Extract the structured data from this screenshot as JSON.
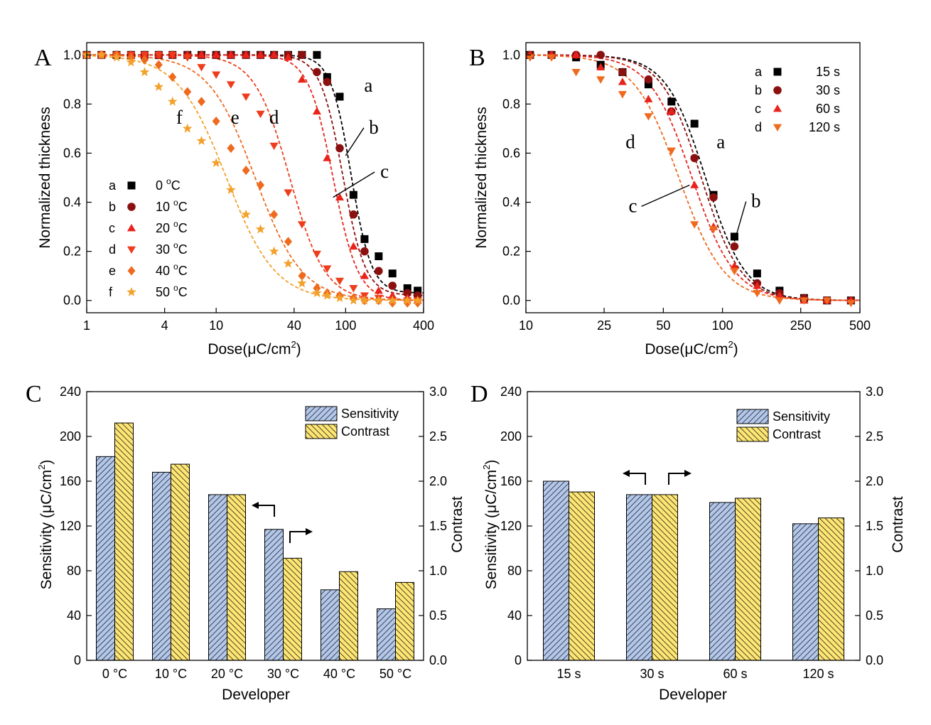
{
  "colors": {
    "a": "#000000",
    "b": "#8b1010",
    "c": "#e8231b",
    "d": "#ee3c1c",
    "e": "#ee6a1e",
    "f": "#f2a12a",
    "sensitivity_fill": "#b4c7e7",
    "contrast_fill": "#fde673"
  },
  "chart_data": [
    {
      "panel": "A",
      "type": "scatter",
      "xlabel_prefix": "Dose(",
      "xlabel_unit": "μC/cm",
      "xlabel_sup": "2",
      "xlabel_suffix": ")",
      "ylabel": "Normalized thickness",
      "x_scale": "log",
      "xlim": [
        1,
        400
      ],
      "ylim": [
        -0.05,
        1.05
      ],
      "x_ticks": [
        1,
        4,
        10,
        40,
        100,
        400
      ],
      "x_tick_labels": [
        "1",
        "4",
        "10",
        "40",
        "100",
        "400"
      ],
      "y_ticks": [
        0.0,
        0.2,
        0.4,
        0.6,
        0.8,
        1.0
      ],
      "y_tick_labels": [
        "0.0",
        "0.2",
        "0.4",
        "0.6",
        "0.8",
        "1.0"
      ],
      "fit_lines": "dashed",
      "legend_position": "lower-left",
      "series": [
        {
          "key": "a",
          "label": "a",
          "name": "0 ",
          "unit_sup": "o",
          "unit": "C",
          "marker": "square",
          "color_key": "a",
          "x": [
            1,
            1.3,
            1.7,
            2.2,
            2.8,
            3.6,
            4.6,
            6,
            7.7,
            10,
            13,
            17,
            22,
            28,
            36,
            46,
            60,
            72,
            90,
            115,
            140,
            180,
            230,
            300,
            360
          ],
          "y": [
            1.0,
            1.0,
            1.0,
            1.0,
            1.0,
            1.0,
            1.0,
            1.0,
            1.0,
            1.0,
            1.0,
            1.0,
            1.0,
            1.0,
            1.0,
            1.0,
            1.0,
            0.91,
            0.83,
            0.43,
            0.25,
            0.18,
            0.11,
            0.05,
            0.04
          ],
          "fit": {
            "x0": 110,
            "n": 5.5,
            "bottom": 0.03
          }
        },
        {
          "key": "b",
          "label": "b",
          "name": "10 ",
          "unit_sup": "o",
          "unit": "C",
          "marker": "circle",
          "color_key": "b",
          "x": [
            1,
            1.3,
            1.7,
            2.2,
            2.8,
            3.6,
            4.6,
            6,
            7.7,
            10,
            13,
            17,
            22,
            28,
            36,
            46,
            60,
            72,
            90,
            115,
            140,
            180,
            230,
            300,
            360
          ],
          "y": [
            1.0,
            1.0,
            1.0,
            1.0,
            1.0,
            1.0,
            1.0,
            1.0,
            1.0,
            1.0,
            1.0,
            1.0,
            1.0,
            1.0,
            1.0,
            1.0,
            0.93,
            0.89,
            0.62,
            0.35,
            0.2,
            0.12,
            0.06,
            0.03,
            0.02
          ],
          "fit": {
            "x0": 95,
            "n": 5.0,
            "bottom": 0.02
          }
        },
        {
          "key": "c",
          "label": "c",
          "name": "20 ",
          "unit_sup": "o",
          "unit": "C",
          "marker": "triangle-up",
          "color_key": "c",
          "x": [
            1,
            1.3,
            1.7,
            2.2,
            2.8,
            3.6,
            4.6,
            6,
            7.7,
            10,
            13,
            17,
            22,
            28,
            36,
            46,
            60,
            72,
            90,
            115,
            140,
            180,
            230,
            300,
            360
          ],
          "y": [
            1.0,
            1.0,
            1.0,
            1.0,
            1.0,
            1.0,
            1.0,
            1.0,
            1.0,
            1.0,
            1.0,
            1.0,
            1.0,
            1.0,
            0.99,
            0.9,
            0.77,
            0.58,
            0.42,
            0.22,
            0.1,
            0.04,
            0.02,
            0.01,
            0.0
          ],
          "fit": {
            "x0": 80,
            "n": 4.5,
            "bottom": 0.0
          }
        },
        {
          "key": "d",
          "label": "d",
          "name": "30 ",
          "unit_sup": "o",
          "unit": "C",
          "marker": "triangle-down",
          "color_key": "d",
          "x": [
            1,
            1.3,
            1.7,
            2.2,
            2.8,
            3.6,
            4.6,
            6,
            7.7,
            10,
            13,
            17,
            22,
            28,
            36,
            46,
            60,
            72,
            90,
            115,
            140,
            180,
            230,
            300,
            360
          ],
          "y": [
            1.0,
            1.0,
            1.0,
            1.0,
            1.0,
            1.0,
            1.0,
            0.99,
            0.95,
            0.92,
            0.88,
            0.83,
            0.76,
            0.63,
            0.44,
            0.31,
            0.19,
            0.13,
            0.08,
            0.05,
            0.02,
            0.01,
            0.0,
            0.0,
            0.0
          ],
          "fit": {
            "x0": 37,
            "n": 3.2,
            "bottom": 0.0
          }
        },
        {
          "key": "e",
          "label": "e",
          "name": "40 ",
          "unit_sup": "o",
          "unit": "C",
          "marker": "diamond",
          "color_key": "e",
          "x": [
            1,
            1.3,
            1.7,
            2.2,
            2.8,
            3.6,
            4.6,
            6,
            7.7,
            10,
            13,
            17,
            22,
            28,
            36,
            46,
            60,
            72,
            90,
            115,
            140,
            180,
            230,
            300,
            360
          ],
          "y": [
            1.0,
            1.0,
            1.0,
            0.99,
            0.98,
            0.96,
            0.91,
            0.85,
            0.81,
            0.73,
            0.62,
            0.53,
            0.47,
            0.35,
            0.24,
            0.1,
            0.05,
            0.03,
            0.02,
            0.01,
            0.0,
            0.0,
            -0.01,
            -0.01,
            -0.01
          ],
          "fit": {
            "x0": 20,
            "n": 2.4,
            "bottom": 0.0
          }
        },
        {
          "key": "f",
          "label": "f",
          "name": "50 ",
          "unit_sup": "o",
          "unit": "C",
          "marker": "star",
          "color_key": "f",
          "x": [
            1,
            1.3,
            1.7,
            2.2,
            2.8,
            3.6,
            4.6,
            6,
            7.7,
            10,
            13,
            17,
            22,
            28,
            36,
            46,
            60,
            72,
            90,
            115,
            140,
            180,
            230,
            300,
            360
          ],
          "y": [
            1.0,
            1.0,
            0.99,
            0.97,
            0.93,
            0.87,
            0.81,
            0.7,
            0.65,
            0.56,
            0.45,
            0.35,
            0.29,
            0.2,
            0.15,
            0.07,
            0.03,
            0.02,
            0.01,
            0.0,
            0.0,
            0.0,
            0.0,
            0.0,
            0.0
          ],
          "fit": {
            "x0": 12,
            "n": 2.3,
            "bottom": 0.0
          }
        }
      ],
      "annotations": [
        {
          "text": "a",
          "x": 150,
          "y": 0.85
        },
        {
          "text": "b",
          "x": 165,
          "y": 0.68,
          "arrow_to": {
            "x": 100,
            "y": 0.59
          }
        },
        {
          "text": "c",
          "x": 200,
          "y": 0.5,
          "arrow_to": {
            "x": 80,
            "y": 0.42
          }
        },
        {
          "text": "d",
          "x": 28,
          "y": 0.72
        },
        {
          "text": "e",
          "x": 14,
          "y": 0.72
        },
        {
          "text": "f",
          "x": 5.2,
          "y": 0.72
        }
      ]
    },
    {
      "panel": "B",
      "type": "scatter",
      "xlabel_prefix": "Dose(",
      "xlabel_unit": "μC/cm",
      "xlabel_sup": "2",
      "xlabel_suffix": ")",
      "ylabel": "Normalized thickness",
      "x_scale": "log",
      "xlim": [
        10,
        500
      ],
      "ylim": [
        -0.05,
        1.05
      ],
      "x_ticks": [
        10,
        25,
        50,
        100,
        250,
        500
      ],
      "x_tick_labels": [
        "10",
        "25",
        "50",
        "100",
        "250",
        "500"
      ],
      "y_ticks": [
        0.0,
        0.2,
        0.4,
        0.6,
        0.8,
        1.0
      ],
      "y_tick_labels": [
        "0.0",
        "0.2",
        "0.4",
        "0.6",
        "0.8",
        "1.0"
      ],
      "fit_lines": "dashed",
      "legend_position": "top-right",
      "series": [
        {
          "key": "a",
          "label": "a",
          "name": "15 s",
          "marker": "square",
          "color_key": "a",
          "x": [
            10.5,
            13.5,
            18,
            24,
            31,
            42,
            55,
            72,
            90,
            115,
            150,
            195,
            260,
            340,
            450
          ],
          "y": [
            1.0,
            1.0,
            0.99,
            0.96,
            0.93,
            0.88,
            0.81,
            0.72,
            0.43,
            0.26,
            0.11,
            0.04,
            0.01,
            0.0,
            0.0
          ],
          "fit": {
            "x0": 82,
            "n": 4.3,
            "bottom": 0.0
          }
        },
        {
          "key": "b",
          "label": "b",
          "name": "30 s",
          "marker": "circle",
          "color_key": "b",
          "x": [
            10.5,
            13.5,
            18,
            24,
            31,
            42,
            55,
            72,
            90,
            115,
            150,
            195,
            260,
            340,
            450
          ],
          "y": [
            1.0,
            1.0,
            1.0,
            1.0,
            0.93,
            0.9,
            0.77,
            0.58,
            0.42,
            0.22,
            0.07,
            0.03,
            0.01,
            0.0,
            0.0
          ],
          "fit": {
            "x0": 78,
            "n": 4.3,
            "bottom": 0.0
          }
        },
        {
          "key": "c",
          "label": "c",
          "name": "60 s",
          "marker": "triangle-up",
          "color_key": "c",
          "x": [
            10.5,
            13.5,
            18,
            24,
            31,
            42,
            55,
            72,
            90,
            115,
            150,
            195,
            260,
            340,
            450
          ],
          "y": [
            1.0,
            1.0,
            1.0,
            0.95,
            0.89,
            0.82,
            0.77,
            0.47,
            0.3,
            0.14,
            0.06,
            0.02,
            0.0,
            0.0,
            0.0
          ],
          "fit": {
            "x0": 70,
            "n": 4.0,
            "bottom": 0.0
          }
        },
        {
          "key": "d",
          "label": "d",
          "name": "120 s",
          "marker": "triangle-down",
          "color_key": "e",
          "x": [
            10.5,
            13.5,
            18,
            24,
            31,
            42,
            55,
            72,
            90,
            115,
            150,
            195,
            260,
            340,
            450
          ],
          "y": [
            0.99,
            0.99,
            0.93,
            0.9,
            0.84,
            0.75,
            0.61,
            0.31,
            0.29,
            0.12,
            0.03,
            0.0,
            0.0,
            0.0,
            -0.01
          ],
          "fit": {
            "x0": 60,
            "n": 3.8,
            "bottom": 0.0
          }
        }
      ],
      "annotations": [
        {
          "text": "a",
          "x": 98,
          "y": 0.62
        },
        {
          "text": "b",
          "x": 148,
          "y": 0.38,
          "arrow_to": {
            "x": 115,
            "y": 0.24
          }
        },
        {
          "text": "c",
          "x": 35,
          "y": 0.36,
          "arrow_to": {
            "x": 68,
            "y": 0.47
          }
        },
        {
          "text": "d",
          "x": 34,
          "y": 0.62
        }
      ]
    },
    {
      "panel": "C",
      "type": "bar",
      "xlabel": "Developer",
      "ylabel_prefix": "Sensitivity (",
      "ylabel_unit": "μC/cm",
      "ylabel_sup": "2",
      "ylabel_suffix": ")",
      "y2label": "Contrast",
      "categories": [
        "0 °C",
        "10 °C",
        "20 °C",
        "30 °C",
        "40 °C",
        "50 °C"
      ],
      "ylim": [
        0,
        240
      ],
      "y_ticks": [
        0,
        40,
        80,
        120,
        160,
        200,
        240
      ],
      "y2lim": [
        0,
        3.0
      ],
      "y2_ticks": [
        0.0,
        0.5,
        1.0,
        1.5,
        2.0,
        2.5,
        3.0
      ],
      "y2_tick_labels": [
        "0.0",
        "0.5",
        "1.0",
        "1.5",
        "2.0",
        "2.5",
        "3.0"
      ],
      "series": [
        {
          "name": "Sensitivity",
          "axis": "left",
          "values": [
            182,
            168,
            148,
            117,
            63,
            46
          ]
        },
        {
          "name": "Contrast",
          "axis": "right",
          "values": [
            2.65,
            2.19,
            1.85,
            1.14,
            0.99,
            0.87
          ]
        }
      ],
      "legend_position": "top-right"
    },
    {
      "panel": "D",
      "type": "bar",
      "xlabel": "Developer",
      "ylabel_prefix": "Sensitivity (",
      "ylabel_unit": "μC/cm",
      "ylabel_sup": "2",
      "ylabel_suffix": ")",
      "y2label": "Contrast",
      "categories": [
        "15 s",
        "30 s",
        "60 s",
        "120 s"
      ],
      "ylim": [
        0,
        240
      ],
      "y_ticks": [
        0,
        40,
        80,
        120,
        160,
        200,
        240
      ],
      "y2lim": [
        0,
        3.0
      ],
      "y2_ticks": [
        0.0,
        0.5,
        1.0,
        1.5,
        2.0,
        2.5,
        3.0
      ],
      "y2_tick_labels": [
        "0.0",
        "0.5",
        "1.0",
        "1.5",
        "2.0",
        "2.5",
        "3.0"
      ],
      "series": [
        {
          "name": "Sensitivity",
          "axis": "left",
          "values": [
            160,
            148,
            141,
            122
          ]
        },
        {
          "name": "Contrast",
          "axis": "right",
          "values": [
            1.88,
            1.85,
            1.81,
            1.59
          ]
        }
      ],
      "legend_position": "top-right"
    }
  ]
}
